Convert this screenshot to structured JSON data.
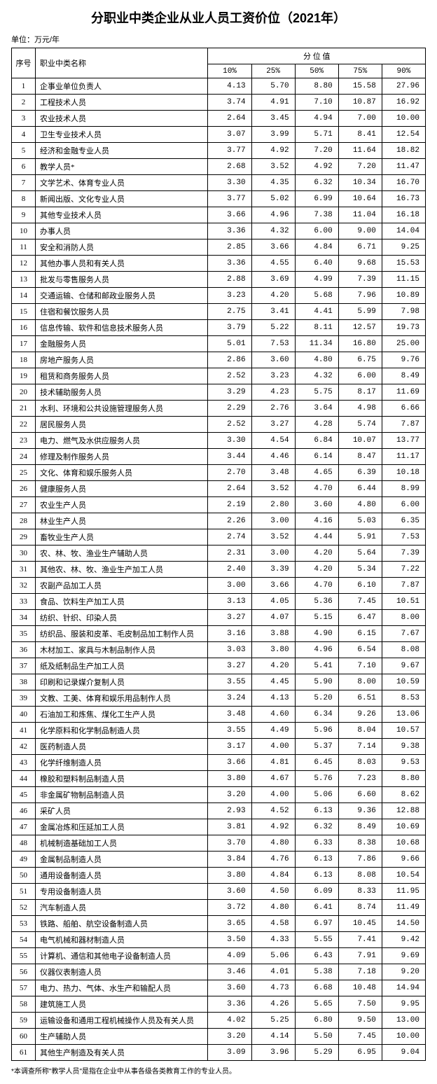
{
  "title": "分职业中类企业从业人员工资价位（2021年）",
  "unit": "单位：万元/年",
  "headers": {
    "seq": "序号",
    "name": "职业中类名称",
    "quantile_group": "分 位 值",
    "p10": "10%",
    "p25": "25%",
    "p50": "50%",
    "p75": "75%",
    "p90": "90%"
  },
  "rows": [
    {
      "seq": "1",
      "name": "企事业单位负责人",
      "p10": "4.13",
      "p25": "5.70",
      "p50": "8.80",
      "p75": "15.58",
      "p90": "27.96"
    },
    {
      "seq": "2",
      "name": "工程技术人员",
      "p10": "3.74",
      "p25": "4.91",
      "p50": "7.10",
      "p75": "10.87",
      "p90": "16.92"
    },
    {
      "seq": "3",
      "name": "农业技术人员",
      "p10": "2.64",
      "p25": "3.45",
      "p50": "4.94",
      "p75": "7.00",
      "p90": "10.00"
    },
    {
      "seq": "4",
      "name": "卫生专业技术人员",
      "p10": "3.07",
      "p25": "3.99",
      "p50": "5.71",
      "p75": "8.41",
      "p90": "12.54"
    },
    {
      "seq": "5",
      "name": "经济和金融专业人员",
      "p10": "3.77",
      "p25": "4.92",
      "p50": "7.20",
      "p75": "11.64",
      "p90": "18.82"
    },
    {
      "seq": "6",
      "name": "教学人员*",
      "p10": "2.68",
      "p25": "3.52",
      "p50": "4.92",
      "p75": "7.20",
      "p90": "11.47"
    },
    {
      "seq": "7",
      "name": "文学艺术、体育专业人员",
      "p10": "3.30",
      "p25": "4.35",
      "p50": "6.32",
      "p75": "10.34",
      "p90": "16.70"
    },
    {
      "seq": "8",
      "name": "新闻出版、文化专业人员",
      "p10": "3.77",
      "p25": "5.02",
      "p50": "6.99",
      "p75": "10.64",
      "p90": "16.73"
    },
    {
      "seq": "9",
      "name": "其他专业技术人员",
      "p10": "3.66",
      "p25": "4.96",
      "p50": "7.38",
      "p75": "11.04",
      "p90": "16.18"
    },
    {
      "seq": "10",
      "name": "办事人员",
      "p10": "3.36",
      "p25": "4.32",
      "p50": "6.00",
      "p75": "9.00",
      "p90": "14.04"
    },
    {
      "seq": "11",
      "name": "安全和消防人员",
      "p10": "2.85",
      "p25": "3.66",
      "p50": "4.84",
      "p75": "6.71",
      "p90": "9.25"
    },
    {
      "seq": "12",
      "name": "其他办事人员和有关人员",
      "p10": "3.36",
      "p25": "4.55",
      "p50": "6.40",
      "p75": "9.68",
      "p90": "15.53"
    },
    {
      "seq": "13",
      "name": "批发与零售服务人员",
      "p10": "2.88",
      "p25": "3.69",
      "p50": "4.99",
      "p75": "7.39",
      "p90": "11.15"
    },
    {
      "seq": "14",
      "name": "交通运输、仓储和邮政业服务人员",
      "p10": "3.23",
      "p25": "4.20",
      "p50": "5.68",
      "p75": "7.96",
      "p90": "10.89"
    },
    {
      "seq": "15",
      "name": "住宿和餐饮服务人员",
      "p10": "2.75",
      "p25": "3.41",
      "p50": "4.41",
      "p75": "5.99",
      "p90": "7.98"
    },
    {
      "seq": "16",
      "name": "信息传输、软件和信息技术服务人员",
      "p10": "3.79",
      "p25": "5.22",
      "p50": "8.11",
      "p75": "12.57",
      "p90": "19.73"
    },
    {
      "seq": "17",
      "name": "金融服务人员",
      "p10": "5.01",
      "p25": "7.53",
      "p50": "11.34",
      "p75": "16.80",
      "p90": "25.00"
    },
    {
      "seq": "18",
      "name": "房地产服务人员",
      "p10": "2.86",
      "p25": "3.60",
      "p50": "4.80",
      "p75": "6.75",
      "p90": "9.76"
    },
    {
      "seq": "19",
      "name": "租赁和商务服务人员",
      "p10": "2.52",
      "p25": "3.23",
      "p50": "4.32",
      "p75": "6.00",
      "p90": "8.49"
    },
    {
      "seq": "20",
      "name": "技术辅助服务人员",
      "p10": "3.29",
      "p25": "4.23",
      "p50": "5.75",
      "p75": "8.17",
      "p90": "11.69"
    },
    {
      "seq": "21",
      "name": "水利、环境和公共设施管理服务人员",
      "p10": "2.29",
      "p25": "2.76",
      "p50": "3.64",
      "p75": "4.98",
      "p90": "6.66"
    },
    {
      "seq": "22",
      "name": "居民服务人员",
      "p10": "2.52",
      "p25": "3.27",
      "p50": "4.28",
      "p75": "5.74",
      "p90": "7.87"
    },
    {
      "seq": "23",
      "name": "电力、燃气及水供应服务人员",
      "p10": "3.30",
      "p25": "4.54",
      "p50": "6.84",
      "p75": "10.07",
      "p90": "13.77"
    },
    {
      "seq": "24",
      "name": "修理及制作服务人员",
      "p10": "3.44",
      "p25": "4.46",
      "p50": "6.14",
      "p75": "8.47",
      "p90": "11.17"
    },
    {
      "seq": "25",
      "name": "文化、体育和娱乐服务人员",
      "p10": "2.70",
      "p25": "3.48",
      "p50": "4.65",
      "p75": "6.39",
      "p90": "10.18"
    },
    {
      "seq": "26",
      "name": "健康服务人员",
      "p10": "2.64",
      "p25": "3.52",
      "p50": "4.70",
      "p75": "6.44",
      "p90": "8.99"
    },
    {
      "seq": "27",
      "name": "农业生产人员",
      "p10": "2.19",
      "p25": "2.80",
      "p50": "3.60",
      "p75": "4.80",
      "p90": "6.00"
    },
    {
      "seq": "28",
      "name": "林业生产人员",
      "p10": "2.26",
      "p25": "3.00",
      "p50": "4.16",
      "p75": "5.03",
      "p90": "6.35"
    },
    {
      "seq": "29",
      "name": "畜牧业生产人员",
      "p10": "2.74",
      "p25": "3.52",
      "p50": "4.44",
      "p75": "5.91",
      "p90": "7.53"
    },
    {
      "seq": "30",
      "name": "农、林、牧、渔业生产辅助人员",
      "p10": "2.31",
      "p25": "3.00",
      "p50": "4.20",
      "p75": "5.64",
      "p90": "7.39"
    },
    {
      "seq": "31",
      "name": "其他农、林、牧、渔业生产加工人员",
      "p10": "2.40",
      "p25": "3.39",
      "p50": "4.20",
      "p75": "5.34",
      "p90": "7.22"
    },
    {
      "seq": "32",
      "name": "农副产品加工人员",
      "p10": "3.00",
      "p25": "3.66",
      "p50": "4.70",
      "p75": "6.10",
      "p90": "7.87"
    },
    {
      "seq": "33",
      "name": "食品、饮料生产加工人员",
      "p10": "3.13",
      "p25": "4.05",
      "p50": "5.36",
      "p75": "7.45",
      "p90": "10.51"
    },
    {
      "seq": "34",
      "name": "纺织、针织、印染人员",
      "p10": "3.27",
      "p25": "4.07",
      "p50": "5.15",
      "p75": "6.47",
      "p90": "8.00"
    },
    {
      "seq": "35",
      "name": "纺织品、服装和皮革、毛皮制品加工制作人员",
      "p10": "3.16",
      "p25": "3.88",
      "p50": "4.90",
      "p75": "6.15",
      "p90": "7.67"
    },
    {
      "seq": "36",
      "name": "木材加工、家具与木制品制作人员",
      "p10": "3.03",
      "p25": "3.80",
      "p50": "4.96",
      "p75": "6.54",
      "p90": "8.08"
    },
    {
      "seq": "37",
      "name": "纸及纸制品生产加工人员",
      "p10": "3.27",
      "p25": "4.20",
      "p50": "5.41",
      "p75": "7.10",
      "p90": "9.67"
    },
    {
      "seq": "38",
      "name": "印刷和记录媒介复制人员",
      "p10": "3.55",
      "p25": "4.45",
      "p50": "5.90",
      "p75": "8.00",
      "p90": "10.59"
    },
    {
      "seq": "39",
      "name": "文教、工美、体育和娱乐用品制作人员",
      "p10": "3.24",
      "p25": "4.13",
      "p50": "5.20",
      "p75": "6.51",
      "p90": "8.53"
    },
    {
      "seq": "40",
      "name": "石油加工和炼焦、煤化工生产人员",
      "p10": "3.48",
      "p25": "4.60",
      "p50": "6.34",
      "p75": "9.26",
      "p90": "13.06"
    },
    {
      "seq": "41",
      "name": "化学原料和化学制品制造人员",
      "p10": "3.55",
      "p25": "4.49",
      "p50": "5.96",
      "p75": "8.04",
      "p90": "10.57"
    },
    {
      "seq": "42",
      "name": "医药制造人员",
      "p10": "3.17",
      "p25": "4.00",
      "p50": "5.37",
      "p75": "7.14",
      "p90": "9.38"
    },
    {
      "seq": "43",
      "name": "化学纤维制造人员",
      "p10": "3.66",
      "p25": "4.81",
      "p50": "6.45",
      "p75": "8.03",
      "p90": "9.53"
    },
    {
      "seq": "44",
      "name": "橡胶和塑料制品制造人员",
      "p10": "3.80",
      "p25": "4.67",
      "p50": "5.76",
      "p75": "7.23",
      "p90": "8.80"
    },
    {
      "seq": "45",
      "name": "非金属矿物制品制造人员",
      "p10": "3.20",
      "p25": "4.00",
      "p50": "5.06",
      "p75": "6.60",
      "p90": "8.62"
    },
    {
      "seq": "46",
      "name": "采矿人员",
      "p10": "2.93",
      "p25": "4.52",
      "p50": "6.13",
      "p75": "9.36",
      "p90": "12.88"
    },
    {
      "seq": "47",
      "name": "金属冶炼和压延加工人员",
      "p10": "3.81",
      "p25": "4.92",
      "p50": "6.32",
      "p75": "8.49",
      "p90": "10.69"
    },
    {
      "seq": "48",
      "name": "机械制造基础加工人员",
      "p10": "3.70",
      "p25": "4.80",
      "p50": "6.33",
      "p75": "8.38",
      "p90": "10.68"
    },
    {
      "seq": "49",
      "name": "金属制品制造人员",
      "p10": "3.84",
      "p25": "4.76",
      "p50": "6.13",
      "p75": "7.86",
      "p90": "9.66"
    },
    {
      "seq": "50",
      "name": "通用设备制造人员",
      "p10": "3.80",
      "p25": "4.84",
      "p50": "6.13",
      "p75": "8.08",
      "p90": "10.54"
    },
    {
      "seq": "51",
      "name": "专用设备制造人员",
      "p10": "3.60",
      "p25": "4.50",
      "p50": "6.09",
      "p75": "8.33",
      "p90": "11.95"
    },
    {
      "seq": "52",
      "name": "汽车制造人员",
      "p10": "3.72",
      "p25": "4.80",
      "p50": "6.41",
      "p75": "8.74",
      "p90": "11.49"
    },
    {
      "seq": "53",
      "name": "铁路、船舶、航空设备制造人员",
      "p10": "3.65",
      "p25": "4.58",
      "p50": "6.97",
      "p75": "10.45",
      "p90": "14.50"
    },
    {
      "seq": "54",
      "name": "电气机械和器材制造人员",
      "p10": "3.50",
      "p25": "4.33",
      "p50": "5.55",
      "p75": "7.41",
      "p90": "9.42"
    },
    {
      "seq": "55",
      "name": "计算机、通信和其他电子设备制造人员",
      "p10": "4.09",
      "p25": "5.06",
      "p50": "6.43",
      "p75": "7.91",
      "p90": "9.69"
    },
    {
      "seq": "56",
      "name": "仪器仪表制造人员",
      "p10": "3.46",
      "p25": "4.01",
      "p50": "5.38",
      "p75": "7.18",
      "p90": "9.20"
    },
    {
      "seq": "57",
      "name": "电力、热力、气体、水生产和输配人员",
      "p10": "3.60",
      "p25": "4.73",
      "p50": "6.68",
      "p75": "10.48",
      "p90": "14.94"
    },
    {
      "seq": "58",
      "name": "建筑施工人员",
      "p10": "3.36",
      "p25": "4.26",
      "p50": "5.65",
      "p75": "7.50",
      "p90": "9.95"
    },
    {
      "seq": "59",
      "name": "运输设备和通用工程机械操作人员及有关人员",
      "p10": "4.02",
      "p25": "5.25",
      "p50": "6.80",
      "p75": "9.50",
      "p90": "13.00"
    },
    {
      "seq": "60",
      "name": "生产辅助人员",
      "p10": "3.20",
      "p25": "4.14",
      "p50": "5.50",
      "p75": "7.45",
      "p90": "10.00"
    },
    {
      "seq": "61",
      "name": "其他生产制造及有关人员",
      "p10": "3.09",
      "p25": "3.96",
      "p50": "5.29",
      "p75": "6.95",
      "p90": "9.04"
    }
  ],
  "footnote": "*本调查所称\"教学人员\"是指在企业中从事各级各类教育工作的专业人员。"
}
